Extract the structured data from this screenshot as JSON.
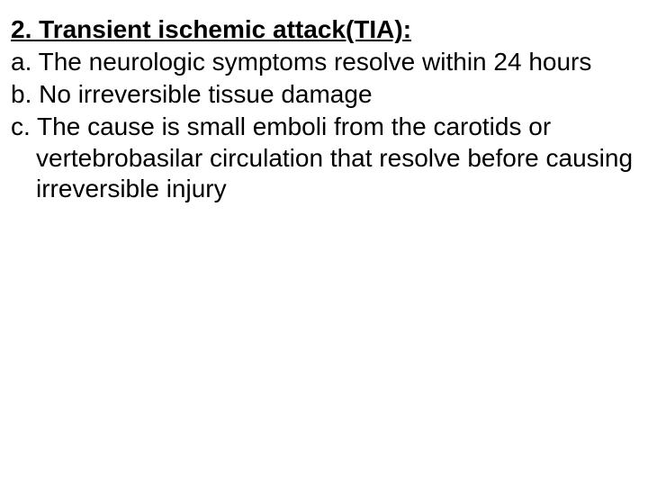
{
  "slide": {
    "background_color": "#ffffff",
    "text_color": "#000000",
    "font_family": "Arial",
    "font_size_pt": 28,
    "heading": "2. Transient ischemic attack(TIA):",
    "items": {
      "a": "a.  The neurologic symptoms resolve within 24 hours",
      "b": "b. No irreversible tissue damage",
      "c": "c. The cause is small emboli from the carotids or vertebrobasilar circulation that resolve before causing irreversible injury"
    }
  }
}
